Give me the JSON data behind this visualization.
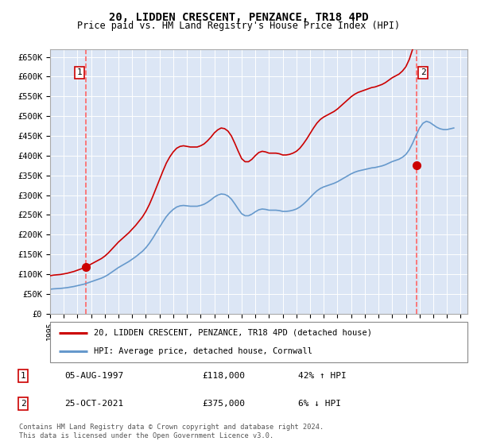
{
  "title": "20, LIDDEN CRESCENT, PENZANCE, TR18 4PD",
  "subtitle": "Price paid vs. HM Land Registry's House Price Index (HPI)",
  "background_color": "#dce6f5",
  "ylim": [
    0,
    670000
  ],
  "yticks": [
    0,
    50000,
    100000,
    150000,
    200000,
    250000,
    300000,
    350000,
    400000,
    450000,
    500000,
    550000,
    600000,
    650000
  ],
  "ytick_labels": [
    "£0",
    "£50K",
    "£100K",
    "£150K",
    "£200K",
    "£250K",
    "£300K",
    "£350K",
    "£400K",
    "£450K",
    "£500K",
    "£550K",
    "£600K",
    "£650K"
  ],
  "xlim_start": 1995.0,
  "xlim_end": 2025.5,
  "xtick_years": [
    1995,
    1996,
    1997,
    1998,
    1999,
    2000,
    2001,
    2002,
    2003,
    2004,
    2005,
    2006,
    2007,
    2008,
    2009,
    2010,
    2011,
    2012,
    2013,
    2014,
    2015,
    2016,
    2017,
    2018,
    2019,
    2020,
    2021,
    2022,
    2023,
    2024,
    2025
  ],
  "sale1_x": 1997.59,
  "sale1_y": 118000,
  "sale1_label": "1",
  "sale2_x": 2021.81,
  "sale2_y": 375000,
  "sale2_label": "2",
  "red_line_color": "#cc0000",
  "blue_line_color": "#6699cc",
  "dashed_line_color": "#ff6666",
  "legend_label1": "20, LIDDEN CRESCENT, PENZANCE, TR18 4PD (detached house)",
  "legend_label2": "HPI: Average price, detached house, Cornwall",
  "table_row1": [
    "1",
    "05-AUG-1997",
    "£118,000",
    "42% ↑ HPI"
  ],
  "table_row2": [
    "2",
    "25-OCT-2021",
    "£375,000",
    "6% ↓ HPI"
  ],
  "footer": "Contains HM Land Registry data © Crown copyright and database right 2024.\nThis data is licensed under the Open Government Licence v3.0.",
  "hpi_data_x": [
    1995.0,
    1995.25,
    1995.5,
    1995.75,
    1996.0,
    1996.25,
    1996.5,
    1996.75,
    1997.0,
    1997.25,
    1997.5,
    1997.75,
    1998.0,
    1998.25,
    1998.5,
    1998.75,
    1999.0,
    1999.25,
    1999.5,
    1999.75,
    2000.0,
    2000.25,
    2000.5,
    2000.75,
    2001.0,
    2001.25,
    2001.5,
    2001.75,
    2002.0,
    2002.25,
    2002.5,
    2002.75,
    2003.0,
    2003.25,
    2003.5,
    2003.75,
    2004.0,
    2004.25,
    2004.5,
    2004.75,
    2005.0,
    2005.25,
    2005.5,
    2005.75,
    2006.0,
    2006.25,
    2006.5,
    2006.75,
    2007.0,
    2007.25,
    2007.5,
    2007.75,
    2008.0,
    2008.25,
    2008.5,
    2008.75,
    2009.0,
    2009.25,
    2009.5,
    2009.75,
    2010.0,
    2010.25,
    2010.5,
    2010.75,
    2011.0,
    2011.25,
    2011.5,
    2011.75,
    2012.0,
    2012.25,
    2012.5,
    2012.75,
    2013.0,
    2013.25,
    2013.5,
    2013.75,
    2014.0,
    2014.25,
    2014.5,
    2014.75,
    2015.0,
    2015.25,
    2015.5,
    2015.75,
    2016.0,
    2016.25,
    2016.5,
    2016.75,
    2017.0,
    2017.25,
    2017.5,
    2017.75,
    2018.0,
    2018.25,
    2018.5,
    2018.75,
    2019.0,
    2019.25,
    2019.5,
    2019.75,
    2020.0,
    2020.25,
    2020.5,
    2020.75,
    2021.0,
    2021.25,
    2021.5,
    2021.75,
    2022.0,
    2022.25,
    2022.5,
    2022.75,
    2023.0,
    2023.25,
    2023.5,
    2023.75,
    2024.0,
    2024.25,
    2024.5
  ],
  "hpi_data_y": [
    62000,
    63000,
    63500,
    64000,
    65000,
    66000,
    67500,
    69000,
    71000,
    73000,
    75000,
    78000,
    81000,
    84000,
    87000,
    90000,
    94000,
    99000,
    105000,
    111000,
    117000,
    122000,
    127000,
    132000,
    138000,
    144000,
    151000,
    158000,
    167000,
    178000,
    191000,
    205000,
    219000,
    233000,
    246000,
    256000,
    264000,
    270000,
    273000,
    274000,
    273000,
    272000,
    272000,
    272000,
    274000,
    277000,
    282000,
    288000,
    295000,
    300000,
    303000,
    302000,
    298000,
    290000,
    278000,
    265000,
    253000,
    248000,
    248000,
    252000,
    258000,
    263000,
    265000,
    264000,
    262000,
    262000,
    262000,
    261000,
    259000,
    259000,
    260000,
    262000,
    265000,
    270000,
    277000,
    285000,
    294000,
    303000,
    311000,
    317000,
    321000,
    324000,
    327000,
    330000,
    334000,
    339000,
    344000,
    349000,
    354000,
    358000,
    361000,
    363000,
    365000,
    367000,
    369000,
    370000,
    372000,
    374000,
    377000,
    381000,
    385000,
    388000,
    391000,
    396000,
    403000,
    415000,
    432000,
    452000,
    470000,
    482000,
    487000,
    484000,
    478000,
    472000,
    468000,
    466000,
    466000,
    468000,
    470000
  ]
}
